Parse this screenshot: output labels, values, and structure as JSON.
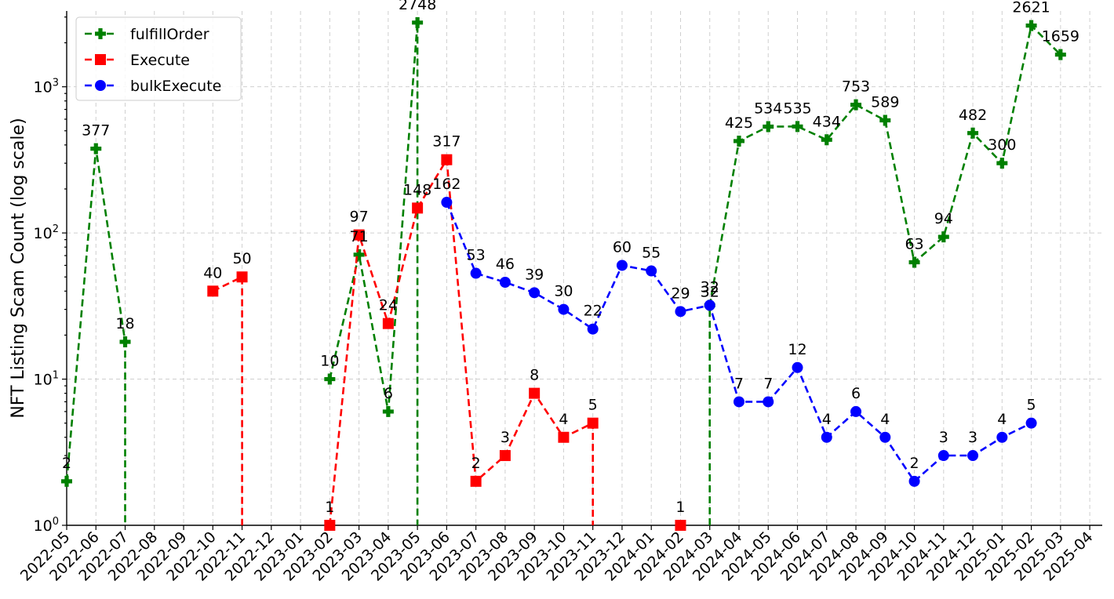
{
  "chart_data": {
    "type": "line",
    "title": "",
    "xlabel": "",
    "ylabel": "NFT Listing Scam Count (log scale)",
    "y_scale": "log",
    "ylim": [
      1,
      3300
    ],
    "y_ticks": [
      {
        "value": 1,
        "base": "10",
        "exp": "0"
      },
      {
        "value": 10,
        "base": "10",
        "exp": "1"
      },
      {
        "value": 100,
        "base": "10",
        "exp": "2"
      },
      {
        "value": 1000,
        "base": "10",
        "exp": "3"
      }
    ],
    "x_tick_labels": [
      "2022-05",
      "2022-06",
      "2022-07",
      "2022-08",
      "2022-09",
      "2022-10",
      "2022-11",
      "2022-12",
      "2023-01",
      "2023-02",
      "2023-03",
      "2023-04",
      "2023-05",
      "2023-06",
      "2023-07",
      "2023-08",
      "2023-09",
      "2023-10",
      "2023-11",
      "2023-12",
      "2024-01",
      "2024-02",
      "2024-03",
      "2024-04",
      "2024-05",
      "2024-06",
      "2024-07",
      "2024-08",
      "2024-09",
      "2024-10",
      "2024-11",
      "2024-12",
      "2025-01",
      "2025-02",
      "2025-03",
      "2025-04"
    ],
    "grid": true,
    "legend_position": "top-left",
    "series": [
      {
        "name": "fulfillOrder",
        "color": "#008000",
        "marker": "plus",
        "points": [
          {
            "x": "2022-05",
            "y": 2
          },
          {
            "x": "2022-06",
            "y": 377
          },
          {
            "x": "2022-07",
            "y": 18
          },
          {
            "x": "2022-07",
            "y": 1
          },
          null,
          {
            "x": "2023-02",
            "y": 10
          },
          {
            "x": "2023-03",
            "y": 71
          },
          {
            "x": "2023-04",
            "y": 6
          },
          {
            "x": "2023-05",
            "y": 2748
          },
          {
            "x": "2023-05",
            "y": 1
          },
          null,
          {
            "x": "2024-03",
            "y": 1
          },
          {
            "x": "2024-03",
            "y": 32
          },
          {
            "x": "2024-04",
            "y": 425
          },
          {
            "x": "2024-05",
            "y": 534
          },
          {
            "x": "2024-06",
            "y": 535
          },
          {
            "x": "2024-07",
            "y": 434
          },
          {
            "x": "2024-08",
            "y": 753
          },
          {
            "x": "2024-09",
            "y": 589
          },
          {
            "x": "2024-10",
            "y": 63
          },
          {
            "x": "2024-11",
            "y": 94
          },
          {
            "x": "2024-12",
            "y": 482
          },
          {
            "x": "2025-01",
            "y": 300
          },
          {
            "x": "2025-02",
            "y": 2621
          },
          {
            "x": "2025-03",
            "y": 1659
          }
        ]
      },
      {
        "name": "Execute",
        "color": "#ff0000",
        "marker": "square",
        "points": [
          {
            "x": "2022-10",
            "y": 40
          },
          {
            "x": "2022-11",
            "y": 50
          },
          {
            "x": "2022-11",
            "y": 1
          },
          null,
          {
            "x": "2023-02",
            "y": 1
          },
          {
            "x": "2023-03",
            "y": 97
          },
          {
            "x": "2023-04",
            "y": 24
          },
          {
            "x": "2023-05",
            "y": 148
          },
          {
            "x": "2023-06",
            "y": 317
          },
          {
            "x": "2023-07",
            "y": 2
          },
          {
            "x": "2023-08",
            "y": 3
          },
          {
            "x": "2023-09",
            "y": 8
          },
          {
            "x": "2023-10",
            "y": 4
          },
          {
            "x": "2023-11",
            "y": 5
          },
          {
            "x": "2023-11",
            "y": 1
          },
          null,
          {
            "x": "2024-02",
            "y": 1
          }
        ]
      },
      {
        "name": "bulkExecute",
        "color": "#0000ff",
        "marker": "circle",
        "points": [
          {
            "x": "2023-06",
            "y": 162
          },
          {
            "x": "2023-07",
            "y": 53
          },
          {
            "x": "2023-08",
            "y": 46
          },
          {
            "x": "2023-09",
            "y": 39
          },
          {
            "x": "2023-10",
            "y": 30
          },
          {
            "x": "2023-11",
            "y": 22
          },
          {
            "x": "2023-12",
            "y": 60
          },
          {
            "x": "2024-01",
            "y": 55
          },
          {
            "x": "2024-02",
            "y": 29
          },
          {
            "x": "2024-03",
            "y": 32
          },
          {
            "x": "2024-04",
            "y": 7
          },
          {
            "x": "2024-05",
            "y": 7
          },
          {
            "x": "2024-06",
            "y": 12
          },
          {
            "x": "2024-07",
            "y": 4
          },
          {
            "x": "2024-08",
            "y": 6
          },
          {
            "x": "2024-09",
            "y": 4
          },
          {
            "x": "2024-10",
            "y": 2
          },
          {
            "x": "2024-11",
            "y": 3
          },
          {
            "x": "2024-12",
            "y": 3
          },
          {
            "x": "2025-01",
            "y": 4
          },
          {
            "x": "2025-02",
            "y": 5
          }
        ]
      }
    ]
  }
}
